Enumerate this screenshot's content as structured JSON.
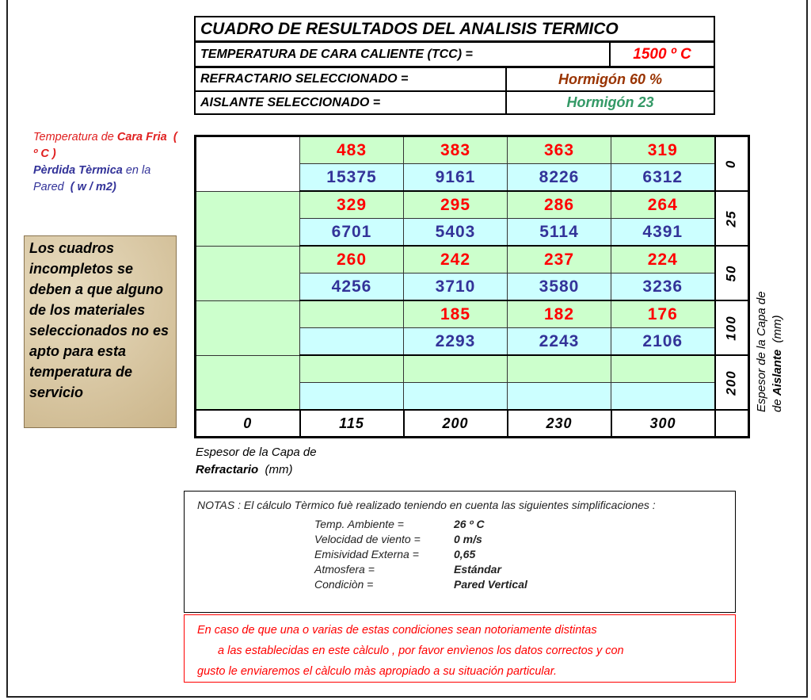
{
  "header": {
    "title": "CUADRO DE RESULTADOS DEL ANALISIS TERMICO",
    "tcc_label": "TEMPERATURA DE CARA CALIENTE (TCC)     =",
    "tcc_value": "1500 º C",
    "refractario_label": "REFRACTARIO SELECCIONADO  =",
    "refractario_value": "Hormigón 60 %",
    "aislante_label": "AISLANTE SELECCIONADO  =",
    "aislante_value": "Hormigón 23"
  },
  "legend": {
    "temp_prefix": "Temperatura de ",
    "temp_bold": "Cara Fria",
    "temp_unit": "( º C )",
    "loss_bold": "Pèrdida Tèrmica",
    "loss_suffix": " en la Pared",
    "loss_unit": "( w / m2)"
  },
  "note_box": "Los cuadros incompletos se deben a que alguno de los materiales seleccionados no es apto para esta temperatura de servicio",
  "table": {
    "refractario_thickness": [
      "0",
      "115",
      "200",
      "230",
      "300"
    ],
    "rows": [
      {
        "aislante": "25",
        "_": "",
        "temps": [
          "",
          "483",
          "383",
          "363",
          "319"
        ],
        "losses": [
          "",
          "15375",
          "9161",
          "8226",
          "6312"
        ],
        "aislante_label": "0"
      },
      {
        "aislante_label": "25",
        "temps": [
          "",
          "329",
          "295",
          "286",
          "264"
        ],
        "losses": [
          "",
          "6701",
          "5403",
          "5114",
          "4391"
        ]
      },
      {
        "aislante_label": "50",
        "temps": [
          "",
          "260",
          "242",
          "237",
          "224"
        ],
        "losses": [
          "",
          "4256",
          "3710",
          "3580",
          "3236"
        ]
      },
      {
        "aislante_label": "100",
        "temps": [
          "",
          "",
          "185",
          "182",
          "176"
        ],
        "losses": [
          "",
          "",
          "2293",
          "2243",
          "2106"
        ]
      },
      {
        "aislante_label": "200",
        "temps": [
          "",
          "",
          "",
          "",
          ""
        ],
        "losses": [
          "",
          "",
          "",
          "",
          ""
        ]
      }
    ],
    "x_label": "Espesor de la Capa de",
    "x_label_bold": "Refractario",
    "x_unit": "(mm)",
    "y_label": "Espesor de la Capa de",
    "y_label_bold": "Aislante",
    "y_unit": "(mm)"
  },
  "notes": {
    "intro": "NOTAS :  El cálculo Tèrmico fuè realizado teniendo en cuenta las siguientes simplificaciones :",
    "conditions": [
      {
        "label": "Temp. Ambiente =",
        "value": "26 º C"
      },
      {
        "label": "Velocidad de viento =",
        "value": "0 m/s"
      },
      {
        "label": "Emisividad Externa =",
        "value": "0,65"
      },
      {
        "label": "Atmosfera =",
        "value": "Estándar"
      },
      {
        "label": "Condiciòn  =",
        "value": "Pared Vertical"
      }
    ]
  },
  "warning": [
    "En caso de que una o varias de estas condiciones sean notoriamente distintas",
    "a las establecidas en este càlculo , por favor envìenos los datos correctos y con",
    "gusto le enviaremos el càlculo màs apropiado a su situación particular."
  ],
  "colors": {
    "temp": "#ff0000",
    "loss": "#333399",
    "green_row": "#ccffcc",
    "cyan_row": "#ccffff",
    "refractario": "#993300",
    "aislante": "#339966"
  }
}
